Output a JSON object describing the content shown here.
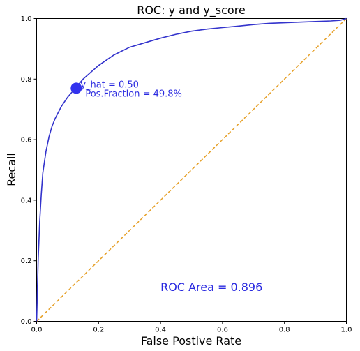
{
  "chart_data": {
    "type": "line",
    "title": "ROC: y and y_score",
    "xlabel": "False Postive Rate",
    "ylabel": "Recall",
    "xlim": [
      0,
      1
    ],
    "ylim": [
      0,
      1
    ],
    "x_ticks": [
      "0.0",
      "0.2",
      "0.4",
      "0.6",
      "0.8",
      "1.0"
    ],
    "y_ticks": [
      "0.0",
      "0.2",
      "0.4",
      "0.6",
      "0.8",
      "1.0"
    ],
    "grid": false,
    "series": [
      {
        "color": "#3333cc",
        "style": "solid",
        "x": [
          0.0,
          0.002,
          0.005,
          0.01,
          0.015,
          0.02,
          0.03,
          0.04,
          0.05,
          0.06,
          0.08,
          0.1,
          0.125,
          0.15,
          0.2,
          0.25,
          0.3,
          0.35,
          0.4,
          0.45,
          0.5,
          0.55,
          0.6,
          0.65,
          0.7,
          0.75,
          0.8,
          0.85,
          0.9,
          0.95,
          0.98,
          1.0
        ],
        "y": [
          0.0,
          0.08,
          0.2,
          0.33,
          0.42,
          0.49,
          0.56,
          0.61,
          0.645,
          0.67,
          0.71,
          0.74,
          0.77,
          0.8,
          0.845,
          0.88,
          0.905,
          0.92,
          0.935,
          0.948,
          0.958,
          0.965,
          0.97,
          0.975,
          0.98,
          0.984,
          0.986,
          0.988,
          0.99,
          0.992,
          0.994,
          1.0
        ]
      },
      {
        "color": "#e6a028",
        "style": "dashed",
        "x": [
          0,
          1
        ],
        "y": [
          0,
          1
        ]
      }
    ],
    "marker": {
      "x": 0.128,
      "y": 0.77,
      "color": "#3333ee",
      "label_line1": "y_hat = 0.50",
      "label_line2": "Pos.Fraction = 49.8%"
    },
    "annotation": {
      "text": "ROC Area = 0.896",
      "x": 0.4,
      "y": 0.1
    }
  }
}
